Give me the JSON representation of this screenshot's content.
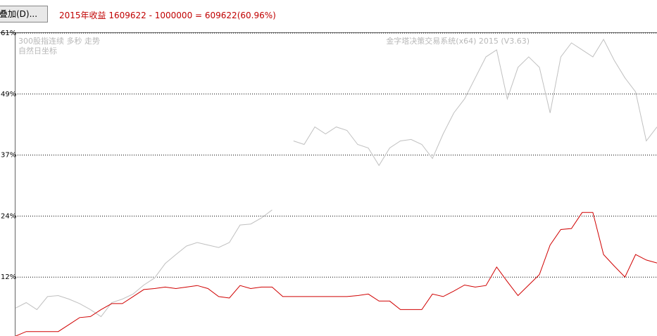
{
  "toolbar": {
    "button": "叠加(D)..."
  },
  "chart_data": {
    "type": "line",
    "title": "2015年收益 1609622 - 1000000 = 609622(60.96%)",
    "annotations": [
      "300股指连续 多秒 走势",
      "自然日坐标",
      "金字塔决策交易系统(x64) 2015 (V3.63)"
    ],
    "ylim": [
      0,
      60.96
    ],
    "yticks": [
      {
        "value": 12.19,
        "label": "12%"
      },
      {
        "value": 24.38,
        "label": "24%"
      },
      {
        "value": 36.58,
        "label": "37%"
      },
      {
        "value": 48.77,
        "label": "49%"
      },
      {
        "value": 60.96,
        "label": "61%"
      }
    ],
    "grid": true,
    "series": [
      {
        "name": "300股指连续",
        "color": "#c0c0c0",
        "values": [
          6.0,
          7.1,
          5.7,
          8.3,
          8.5,
          7.8,
          6.9,
          5.7,
          4.3,
          7.1,
          7.8,
          8.8,
          10.6,
          12.0,
          14.9,
          16.7,
          18.4,
          19.1,
          18.6,
          18.1,
          19.1,
          22.6,
          22.8,
          24.0,
          25.6,
          null,
          39.4,
          38.7,
          42.2,
          40.8,
          42.2,
          41.5,
          38.7,
          38.0,
          34.5,
          38.0,
          39.4,
          39.7,
          38.7,
          35.9,
          40.8,
          45.0,
          47.8,
          52.0,
          56.2,
          57.6,
          47.8,
          54.1,
          56.2,
          54.1,
          45.0,
          56.2,
          59.0,
          57.6,
          56.2,
          59.7,
          55.5,
          52.0,
          49.2,
          39.4,
          42.2
        ]
      },
      {
        "name": "收益",
        "color": "#d00000",
        "values": [
          0.4,
          1.3,
          1.3,
          1.3,
          1.3,
          2.7,
          4.1,
          4.3,
          5.7,
          6.9,
          6.9,
          8.3,
          9.7,
          9.9,
          10.2,
          9.9,
          10.2,
          10.5,
          9.9,
          8.3,
          8.0,
          10.5,
          9.9,
          10.2,
          10.2,
          8.3,
          8.3,
          8.3,
          8.3,
          8.3,
          8.3,
          8.3,
          8.5,
          8.8,
          7.4,
          7.4,
          5.7,
          5.7,
          5.7,
          8.8,
          8.3,
          9.4,
          10.6,
          10.2,
          10.5,
          14.2,
          11.3,
          8.5,
          10.6,
          12.7,
          18.6,
          21.7,
          21.9,
          25.1,
          25.1,
          16.7,
          14.4,
          12.2,
          16.7,
          15.6,
          15.0
        ]
      }
    ]
  }
}
